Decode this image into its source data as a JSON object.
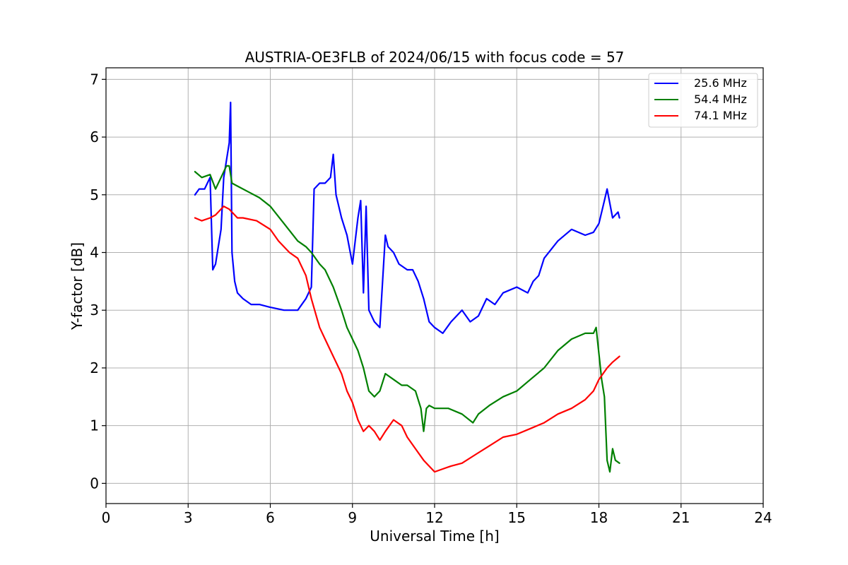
{
  "chart_data": {
    "type": "line",
    "title": "AUSTRIA-OE3FLB of 2024/06/15 with focus code = 57",
    "xlabel": "Universal Time [h]",
    "ylabel": "Y-factor [dB]",
    "xlim": [
      0,
      24
    ],
    "ylim": [
      -0.35,
      7.2
    ],
    "xticks": [
      0,
      3,
      6,
      9,
      12,
      15,
      18,
      21,
      24
    ],
    "xtick_labels": [
      "0",
      "3",
      "6",
      "9",
      "12",
      "15",
      "18",
      "21",
      "24"
    ],
    "yticks": [
      0,
      1,
      2,
      3,
      4,
      5,
      6,
      7
    ],
    "ytick_labels": [
      "0",
      "1",
      "2",
      "3",
      "4",
      "5",
      "6",
      "7"
    ],
    "grid": true,
    "legend_position": "top-right",
    "series": [
      {
        "name": "25.6 MHz",
        "color": "#0000ff",
        "x": [
          3.25,
          3.4,
          3.6,
          3.8,
          3.9,
          4.0,
          4.1,
          4.2,
          4.3,
          4.4,
          4.5,
          4.55,
          4.6,
          4.7,
          4.8,
          5.0,
          5.3,
          5.6,
          6.0,
          6.5,
          7.0,
          7.3,
          7.5,
          7.6,
          7.8,
          8.0,
          8.2,
          8.3,
          8.4,
          8.6,
          8.8,
          9.0,
          9.2,
          9.3,
          9.4,
          9.5,
          9.6,
          9.8,
          10.0,
          10.2,
          10.3,
          10.5,
          10.7,
          11.0,
          11.2,
          11.4,
          11.6,
          11.7,
          11.8,
          12.0,
          12.3,
          12.6,
          13.0,
          13.3,
          13.6,
          13.9,
          14.2,
          14.5,
          15.0,
          15.4,
          15.6,
          15.8,
          16.0,
          16.5,
          17.0,
          17.5,
          17.8,
          18.0,
          18.2,
          18.3,
          18.5,
          18.7,
          18.75
        ],
        "y": [
          5.0,
          5.1,
          5.1,
          5.3,
          3.7,
          3.8,
          4.1,
          4.4,
          5.3,
          5.6,
          5.9,
          6.6,
          4.0,
          3.5,
          3.3,
          3.2,
          3.1,
          3.1,
          3.05,
          3.0,
          3.0,
          3.2,
          3.4,
          5.1,
          5.2,
          5.2,
          5.3,
          5.7,
          5.0,
          4.6,
          4.3,
          3.8,
          4.6,
          4.9,
          3.3,
          4.8,
          3.0,
          2.8,
          2.7,
          4.3,
          4.1,
          4.0,
          3.8,
          3.7,
          3.7,
          3.5,
          3.2,
          3.0,
          2.8,
          2.7,
          2.6,
          2.8,
          3.0,
          2.8,
          2.9,
          3.2,
          3.1,
          3.3,
          3.4,
          3.3,
          3.5,
          3.6,
          3.9,
          4.2,
          4.4,
          4.3,
          4.35,
          4.5,
          4.9,
          5.1,
          4.6,
          4.7,
          4.6
        ]
      },
      {
        "name": "54.4 MHz",
        "color": "#008000",
        "x": [
          3.25,
          3.5,
          3.8,
          4.0,
          4.2,
          4.4,
          4.5,
          4.6,
          4.8,
          5.2,
          5.6,
          6.0,
          6.5,
          7.0,
          7.3,
          7.5,
          7.8,
          8.0,
          8.3,
          8.6,
          8.8,
          9.0,
          9.2,
          9.4,
          9.6,
          9.8,
          10.0,
          10.2,
          10.5,
          10.8,
          11.0,
          11.3,
          11.5,
          11.6,
          11.7,
          11.8,
          12.0,
          12.5,
          13.0,
          13.4,
          13.6,
          14.0,
          14.5,
          15.0,
          15.5,
          16.0,
          16.5,
          17.0,
          17.5,
          17.8,
          17.9,
          18.1,
          18.2,
          18.3,
          18.4,
          18.5,
          18.6,
          18.75
        ],
        "y": [
          5.4,
          5.3,
          5.35,
          5.1,
          5.3,
          5.5,
          5.5,
          5.2,
          5.15,
          5.05,
          4.95,
          4.8,
          4.5,
          4.2,
          4.1,
          4.0,
          3.8,
          3.7,
          3.4,
          3.0,
          2.7,
          2.5,
          2.3,
          2.0,
          1.6,
          1.5,
          1.6,
          1.9,
          1.8,
          1.7,
          1.7,
          1.6,
          1.3,
          0.9,
          1.3,
          1.35,
          1.3,
          1.3,
          1.2,
          1.05,
          1.2,
          1.35,
          1.5,
          1.6,
          1.8,
          2.0,
          2.3,
          2.5,
          2.6,
          2.6,
          2.7,
          1.8,
          1.5,
          0.4,
          0.2,
          0.6,
          0.4,
          0.35
        ]
      },
      {
        "name": "74.1 MHz",
        "color": "#ff0000",
        "x": [
          3.25,
          3.5,
          3.8,
          4.0,
          4.3,
          4.5,
          4.8,
          5.0,
          5.5,
          6.0,
          6.3,
          6.7,
          7.0,
          7.3,
          7.5,
          7.8,
          8.0,
          8.3,
          8.6,
          8.8,
          9.0,
          9.2,
          9.4,
          9.6,
          9.8,
          10.0,
          10.2,
          10.5,
          10.8,
          11.0,
          11.3,
          11.6,
          12.0,
          12.3,
          12.6,
          13.0,
          13.5,
          14.0,
          14.5,
          15.0,
          15.5,
          16.0,
          16.5,
          17.0,
          17.5,
          17.8,
          18.0,
          18.3,
          18.5,
          18.75
        ],
        "y": [
          4.6,
          4.55,
          4.6,
          4.65,
          4.8,
          4.75,
          4.6,
          4.6,
          4.55,
          4.4,
          4.2,
          4.0,
          3.9,
          3.6,
          3.2,
          2.7,
          2.5,
          2.2,
          1.9,
          1.6,
          1.4,
          1.1,
          0.9,
          1.0,
          0.9,
          0.75,
          0.9,
          1.1,
          1.0,
          0.8,
          0.6,
          0.4,
          0.2,
          0.25,
          0.3,
          0.35,
          0.5,
          0.65,
          0.8,
          0.85,
          0.95,
          1.05,
          1.2,
          1.3,
          1.45,
          1.6,
          1.8,
          2.0,
          2.1,
          2.2
        ]
      }
    ]
  }
}
